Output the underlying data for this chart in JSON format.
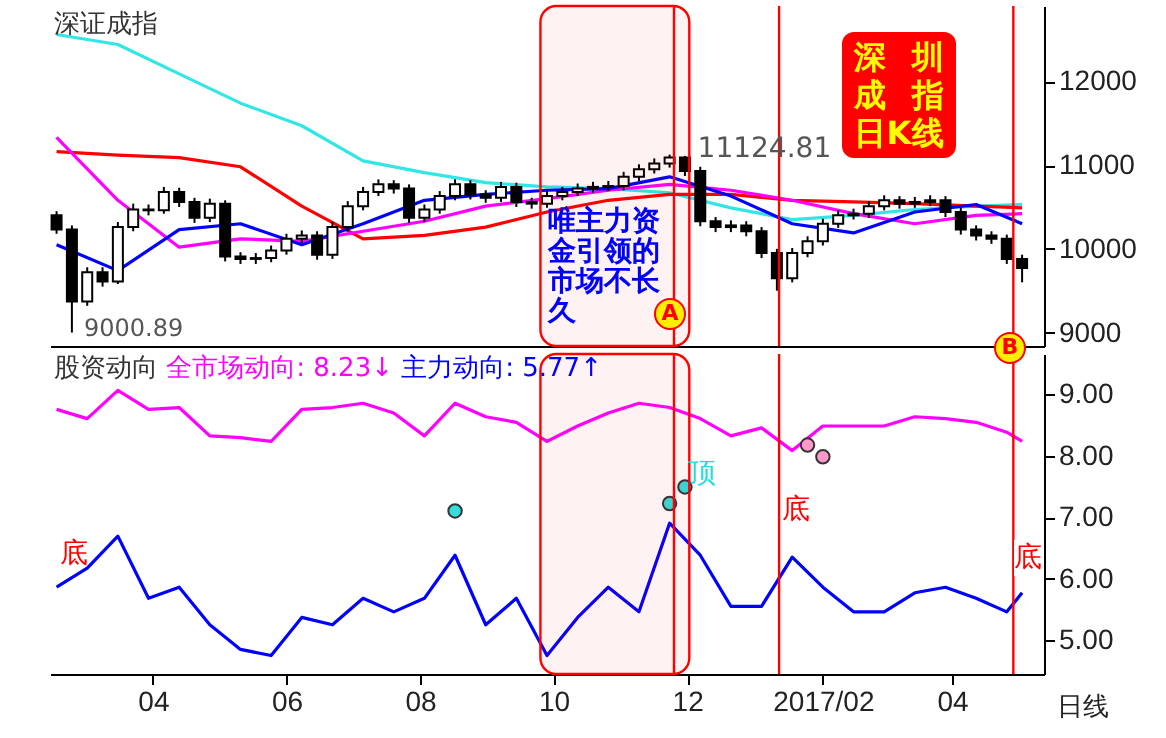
{
  "chart_data": [
    {
      "type": "candlestick",
      "title": "深证成指",
      "x": [
        "2016-02-17",
        "2016-02-24",
        "2016-03-02",
        "2016-03-09",
        "2016-03-16",
        "2016-03-23",
        "2016-03-30",
        "2016-04-06",
        "2016-04-13",
        "2016-04-20",
        "2016-04-27",
        "2016-05-04",
        "2016-05-11",
        "2016-05-18",
        "2016-05-25",
        "2016-06-01",
        "2016-06-08",
        "2016-06-15",
        "2016-06-22",
        "2016-06-29",
        "2016-07-06",
        "2016-07-13",
        "2016-07-20",
        "2016-07-27",
        "2016-08-03",
        "2016-08-10",
        "2016-08-17",
        "2016-08-24",
        "2016-08-31",
        "2016-09-07",
        "2016-09-14",
        "2016-09-21",
        "2016-09-28",
        "2016-10-05",
        "2016-10-12",
        "2016-10-19",
        "2016-10-26",
        "2016-11-02",
        "2016-11-09",
        "2016-11-16",
        "2016-11-23",
        "2016-11-30",
        "2016-12-07",
        "2016-12-14",
        "2016-12-21",
        "2016-12-28",
        "2017-01-04",
        "2017-01-11",
        "2017-01-18",
        "2017-01-25",
        "2017-02-01",
        "2017-02-08",
        "2017-02-15",
        "2017-02-22",
        "2017-03-01",
        "2017-03-08",
        "2017-03-15",
        "2017-03-22",
        "2017-03-29",
        "2017-04-05",
        "2017-04-12",
        "2017-04-19",
        "2017-04-26",
        "2017-05-03"
      ],
      "ohlc": [
        [
          10400,
          10450,
          10180,
          10230
        ],
        [
          10230,
          10280,
          9000.89,
          9370
        ],
        [
          9370,
          9780,
          9320,
          9720
        ],
        [
          9720,
          9780,
          9550,
          9610
        ],
        [
          9610,
          10320,
          9580,
          10260
        ],
        [
          10260,
          10540,
          10210,
          10470
        ],
        [
          10470,
          10530,
          10400,
          10460
        ],
        [
          10460,
          10740,
          10420,
          10680
        ],
        [
          10680,
          10730,
          10500,
          10560
        ],
        [
          10560,
          10610,
          10310,
          10370
        ],
        [
          10370,
          10600,
          10320,
          10540
        ],
        [
          10540,
          10580,
          9850,
          9910
        ],
        [
          9910,
          9960,
          9820,
          9880
        ],
        [
          9880,
          9950,
          9820,
          9890
        ],
        [
          9890,
          10040,
          9840,
          9980
        ],
        [
          9980,
          10180,
          9930,
          10120
        ],
        [
          10120,
          10220,
          10070,
          10160
        ],
        [
          10160,
          10210,
          9870,
          9930
        ],
        [
          9930,
          10320,
          9880,
          10260
        ],
        [
          10260,
          10570,
          10210,
          10510
        ],
        [
          10510,
          10740,
          10460,
          10680
        ],
        [
          10680,
          10830,
          10630,
          10770
        ],
        [
          10770,
          10820,
          10660,
          10720
        ],
        [
          10720,
          10770,
          10310,
          10370
        ],
        [
          10370,
          10530,
          10320,
          10470
        ],
        [
          10470,
          10690,
          10420,
          10630
        ],
        [
          10630,
          10830,
          10580,
          10770
        ],
        [
          10770,
          10820,
          10590,
          10650
        ],
        [
          10650,
          10700,
          10550,
          10610
        ],
        [
          10610,
          10800,
          10560,
          10740
        ],
        [
          10740,
          10790,
          10500,
          10560
        ],
        [
          10560,
          10610,
          10480,
          10540
        ],
        [
          10540,
          10690,
          10490,
          10630
        ],
        [
          10630,
          10740,
          10580,
          10680
        ],
        [
          10680,
          10780,
          10630,
          10720
        ],
        [
          10720,
          10800,
          10670,
          10740
        ],
        [
          10740,
          10810,
          10690,
          10750
        ],
        [
          10750,
          10920,
          10700,
          10860
        ],
        [
          10860,
          11010,
          10810,
          10950
        ],
        [
          10950,
          11080,
          10900,
          11020
        ],
        [
          11020,
          11124.81,
          10970,
          11090
        ],
        [
          11090,
          11110,
          10870,
          10930
        ],
        [
          10930,
          10980,
          10270,
          10330
        ],
        [
          10330,
          10380,
          10200,
          10260
        ],
        [
          10260,
          10340,
          10200,
          10280
        ],
        [
          10280,
          10330,
          10150,
          10210
        ],
        [
          10210,
          10260,
          9890,
          9950
        ],
        [
          9950,
          10000,
          9500,
          9650
        ],
        [
          9650,
          10010,
          9600,
          9950
        ],
        [
          9950,
          10150,
          9900,
          10090
        ],
        [
          10090,
          10360,
          10040,
          10300
        ],
        [
          10300,
          10460,
          10250,
          10400
        ],
        [
          10400,
          10480,
          10350,
          10420
        ],
        [
          10420,
          10570,
          10370,
          10510
        ],
        [
          10510,
          10640,
          10460,
          10580
        ],
        [
          10580,
          10630,
          10480,
          10540
        ],
        [
          10540,
          10620,
          10490,
          10560
        ],
        [
          10560,
          10640,
          10510,
          10580
        ],
        [
          10580,
          10630,
          10380,
          10440
        ],
        [
          10440,
          10490,
          10170,
          10230
        ],
        [
          10230,
          10280,
          10100,
          10160
        ],
        [
          10160,
          10210,
          10060,
          10120
        ],
        [
          10120,
          10170,
          9820,
          9880
        ],
        [
          9880,
          9930,
          9600,
          9770
        ]
      ],
      "series": [
        {
          "type": "line",
          "color": "#33e6e6",
          "x": [
            "2016-02-17",
            "2016-03-16",
            "2016-04-13",
            "2016-05-11",
            "2016-06-08",
            "2016-07-06",
            "2016-08-03",
            "2016-08-31",
            "2016-09-28",
            "2016-10-26",
            "2016-11-23",
            "2016-12-21",
            "2017-01-18",
            "2017-02-15",
            "2017-03-15",
            "2017-04-12",
            "2017-05-03"
          ],
          "values": [
            12560,
            12440,
            12090,
            11740,
            11470,
            11050,
            10910,
            10790,
            10740,
            10720,
            10670,
            10490,
            10350,
            10400,
            10470,
            10510,
            10530
          ]
        },
        {
          "type": "line",
          "color": "#ff0000",
          "x": [
            "2016-02-17",
            "2016-03-16",
            "2016-04-13",
            "2016-05-11",
            "2016-06-08",
            "2016-07-06",
            "2016-08-03",
            "2016-08-31",
            "2016-09-28",
            "2016-10-26",
            "2016-11-23",
            "2016-12-21",
            "2017-01-18",
            "2017-02-15",
            "2017-03-15",
            "2017-04-12",
            "2017-05-03"
          ],
          "values": [
            11160,
            11120,
            11090,
            10980,
            10510,
            10120,
            10160,
            10260,
            10440,
            10580,
            10650,
            10650,
            10580,
            10560,
            10540,
            10510,
            10490
          ]
        },
        {
          "type": "line",
          "color": "#ff00ff",
          "x": [
            "2016-02-17",
            "2016-03-16",
            "2016-04-13",
            "2016-05-11",
            "2016-06-08",
            "2016-07-06",
            "2016-08-03",
            "2016-08-31",
            "2016-09-28",
            "2016-10-26",
            "2016-11-23",
            "2016-12-21",
            "2017-01-18",
            "2017-02-15",
            "2017-03-15",
            "2017-04-12",
            "2017-05-03"
          ],
          "values": [
            11330,
            10580,
            10020,
            10120,
            10090,
            10210,
            10330,
            10510,
            10600,
            10700,
            10770,
            10700,
            10580,
            10420,
            10300,
            10400,
            10420
          ]
        },
        {
          "type": "line",
          "color": "#0000ff",
          "x": [
            "2016-02-17",
            "2016-03-16",
            "2016-04-13",
            "2016-05-11",
            "2016-06-08",
            "2016-07-06",
            "2016-08-03",
            "2016-08-31",
            "2016-09-28",
            "2016-10-26",
            "2016-11-23",
            "2016-12-21",
            "2017-01-18",
            "2017-02-15",
            "2017-03-15",
            "2017-04-12",
            "2017-05-03"
          ],
          "values": [
            10050,
            9740,
            10230,
            10300,
            10050,
            10300,
            10580,
            10650,
            10700,
            10720,
            10860,
            10630,
            10300,
            10190,
            10440,
            10530,
            10300
          ]
        }
      ],
      "xlim": [
        "2016-02-14",
        "2017-05-13"
      ],
      "ylim": [
        8840,
        12900
      ],
      "yticks": [
        9000,
        10000,
        11000,
        12000
      ],
      "tick_labels": "y",
      "ref_lines": [
        {
          "axis": "x",
          "value": "2016-11-25",
          "color": "#ff0000"
        },
        {
          "axis": "x",
          "value": "2017-01-12",
          "color": "#ff0000"
        },
        {
          "axis": "x",
          "value": "2017-04-29",
          "color": "#ff0000"
        }
      ],
      "bands": [
        {
          "axis": "x",
          "from": "2016-09-25",
          "to": "2016-12-02",
          "color": "#ff0000"
        }
      ],
      "annotations": [
        "唯主力资金引领的市场不长久",
        "深圳成指日K线",
        "9000.89",
        "A",
        "B",
        {
          "text": "11124.81",
          "x": "2016-11-23",
          "y": 11124.81
        }
      ]
    },
    {
      "type": "line",
      "title": "股资动向",
      "x": [
        "2016-02-17",
        "2016-03-02",
        "2016-03-16",
        "2016-03-30",
        "2016-04-13",
        "2016-04-27",
        "2016-05-11",
        "2016-05-25",
        "2016-06-08",
        "2016-06-22",
        "2016-07-06",
        "2016-07-20",
        "2016-08-03",
        "2016-08-17",
        "2016-08-31",
        "2016-09-14",
        "2016-09-28",
        "2016-10-12",
        "2016-10-26",
        "2016-11-09",
        "2016-11-23",
        "2016-12-07",
        "2016-12-21",
        "2017-01-04",
        "2017-01-18",
        "2017-02-01",
        "2017-02-15",
        "2017-03-01",
        "2017-03-15",
        "2017-03-29",
        "2017-04-12",
        "2017-04-26",
        "2017-05-03"
      ],
      "series": [
        {
          "name": "全市场动向: 8.23↓",
          "color": "#ff00ff",
          "values": [
            8.75,
            8.6,
            9.06,
            8.75,
            8.78,
            8.32,
            8.29,
            8.23,
            8.75,
            8.78,
            8.85,
            8.69,
            8.32,
            8.85,
            8.63,
            8.54,
            8.23,
            8.48,
            8.69,
            8.85,
            8.78,
            8.6,
            8.32,
            8.45,
            8.08,
            8.48,
            8.48,
            8.48,
            8.63,
            8.6,
            8.54,
            8.38,
            8.23
          ]
        },
        {
          "name": "主力动向: 5.77↑",
          "color": "#0000ff",
          "values": [
            5.86,
            6.17,
            6.69,
            5.68,
            5.86,
            5.25,
            4.85,
            4.75,
            5.37,
            5.25,
            5.68,
            5.46,
            5.68,
            6.38,
            5.25,
            5.68,
            4.75,
            5.37,
            5.86,
            5.46,
            6.9,
            6.38,
            5.55,
            5.55,
            6.35,
            5.86,
            5.46,
            5.46,
            5.77,
            5.86,
            5.68,
            5.46,
            5.77
          ]
        },
        {
          "type": "scatter",
          "color": "#33dddd",
          "x": [
            "2016-08-17",
            "2016-11-23",
            "2016-11-30"
          ],
          "values": [
            7.1,
            7.22,
            7.49
          ]
        },
        {
          "type": "scatter",
          "color": "#ff99cc",
          "x": [
            "2017-01-25",
            "2017-02-01"
          ],
          "values": [
            8.17,
            7.98
          ]
        }
      ],
      "xlim": [
        "2016-02-14",
        "2017-05-13"
      ],
      "xticks": [
        {
          "value": "2016-04-01",
          "label": "04"
        },
        {
          "value": "2016-06-01",
          "label": "06"
        },
        {
          "value": "2016-08-01",
          "label": "08"
        },
        {
          "value": "2016-10-01",
          "label": "10"
        },
        {
          "value": "2016-12-01",
          "label": "12"
        },
        {
          "value": "2017-02-01",
          "label": "2017/02"
        },
        {
          "value": "2017-04-01",
          "label": "04"
        }
      ],
      "xlabel": "日线",
      "ylim": [
        4.45,
        9.65
      ],
      "yticks": [
        {
          "value": 5,
          "label": "5.00"
        },
        {
          "value": 6,
          "label": "6.00"
        },
        {
          "value": 7,
          "label": "7.00"
        },
        {
          "value": 8,
          "label": "8.00"
        },
        {
          "value": 9,
          "label": "9.00"
        }
      ],
      "ref_lines": [
        {
          "axis": "x",
          "value": "2016-11-25",
          "color": "#ff0000"
        },
        {
          "axis": "x",
          "value": "2017-01-12",
          "color": "#ff0000"
        },
        {
          "axis": "x",
          "value": "2017-04-29",
          "color": "#ff0000"
        }
      ],
      "bands": [
        {
          "axis": "x",
          "from": "2016-09-25",
          "to": "2016-12-02",
          "color": "#ff0000"
        }
      ],
      "annotations": [
        "底",
        "顶",
        "底",
        "底"
      ]
    }
  ]
}
